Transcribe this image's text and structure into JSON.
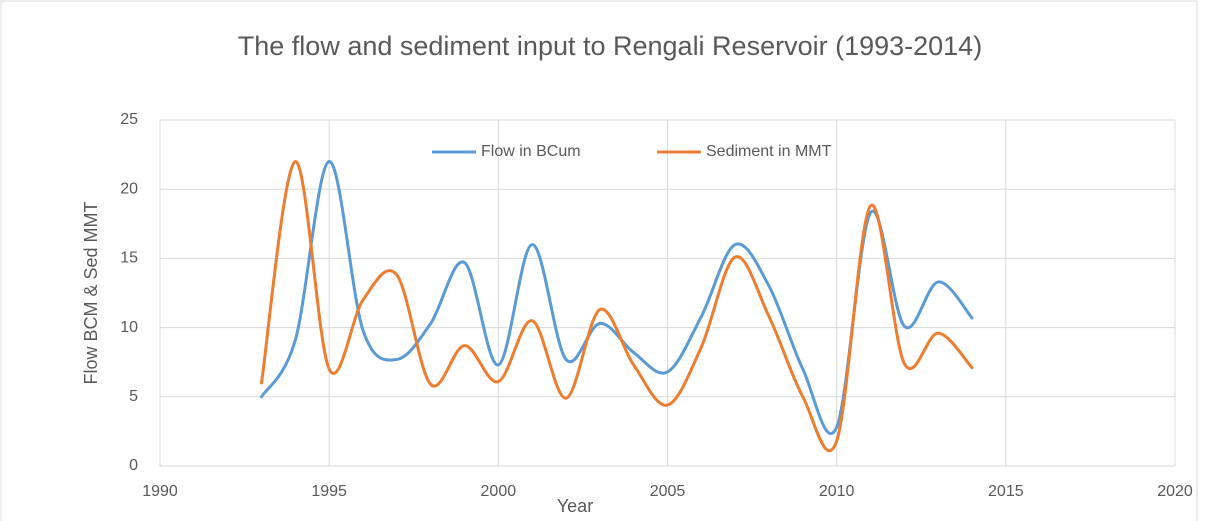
{
  "chart_data": {
    "type": "line",
    "title": "The flow and sediment  input to Rengali Reservoir (1993-2014)",
    "x_label": "Year",
    "y_label": "Flow BCM & Sed MMT",
    "x": [
      1993,
      1994,
      1995,
      1996,
      1997,
      1998,
      1999,
      2000,
      2001,
      2002,
      2003,
      2004,
      2005,
      2006,
      2007,
      2008,
      2009,
      2010,
      2011,
      2012,
      2013,
      2014
    ],
    "series": [
      {
        "name": "Flow in BCum",
        "color": "#5b9bd5",
        "values": [
          5.0,
          9.1,
          22,
          9.8,
          7.7,
          10.3,
          14.7,
          7.3,
          16,
          7.7,
          10.3,
          8.2,
          6.8,
          10.8,
          16,
          13,
          7,
          2.8,
          18.3,
          10.1,
          13.3,
          10.7
        ]
      },
      {
        "name": "Sediment in MMT",
        "color": "#ed7d31",
        "values": [
          6,
          22,
          7,
          12,
          13.8,
          5.9,
          8.7,
          6.1,
          10.5,
          4.9,
          11.3,
          7.3,
          4.4,
          8.6,
          15.1,
          10.8,
          5,
          1.8,
          18.8,
          7.4,
          9.6,
          7.1
        ]
      }
    ],
    "xlim": [
      1990,
      2020
    ],
    "xticks": [
      1990,
      1995,
      2000,
      2005,
      2010,
      2015,
      2020
    ],
    "ylim": [
      0,
      25
    ],
    "yticks": [
      0,
      5,
      10,
      15,
      20,
      25
    ],
    "grid": true,
    "smooth": true,
    "legend": "top"
  }
}
